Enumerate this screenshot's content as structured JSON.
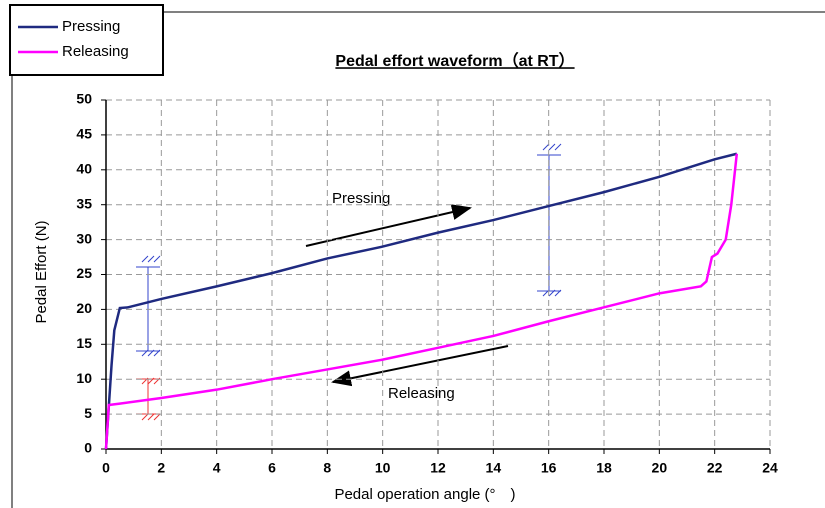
{
  "chart_data": {
    "type": "line",
    "title": "Pedal effort waveform（at RT）",
    "x_label": "Pedal operation angle (°　)",
    "y_label": "Pedal Effort (N)",
    "xlim": [
      0,
      24
    ],
    "xticks": [
      0,
      2,
      4,
      6,
      8,
      10,
      12,
      14,
      16,
      18,
      20,
      22,
      24
    ],
    "ylim": [
      0,
      50
    ],
    "yticks": [
      0,
      5,
      10,
      15,
      20,
      25,
      30,
      35,
      40,
      45,
      50
    ],
    "grid": true,
    "legend": "top-left",
    "annotations": [
      "Pressing",
      "Releasing"
    ],
    "series": [
      {
        "name": "Pressing",
        "color": "#1f2a80",
        "x": [
          0,
          0.1,
          0.2,
          0.3,
          0.5,
          0.8,
          2,
          4,
          6,
          8,
          10,
          12,
          14,
          16,
          18,
          20,
          22,
          22.8
        ],
        "values": [
          0,
          6,
          12,
          17,
          20.2,
          20.3,
          21.5,
          23.3,
          25.2,
          27.3,
          29,
          31,
          32.8,
          34.8,
          36.8,
          39,
          41.5,
          42.3
        ]
      },
      {
        "name": "Releasing",
        "color": "#ff00ff",
        "x": [
          22.8,
          22.6,
          22.4,
          22.1,
          21.9,
          21.7,
          21.5,
          20,
          18,
          16,
          14,
          12,
          10,
          8,
          6,
          4,
          2,
          0.5,
          0.1,
          0
        ],
        "values": [
          42.3,
          35,
          30,
          28,
          27.5,
          24,
          23.3,
          22.3,
          20.3,
          18.3,
          16.2,
          14.5,
          12.8,
          11.4,
          10,
          8.5,
          7.3,
          6.5,
          6.3,
          0
        ]
      }
    ]
  }
}
